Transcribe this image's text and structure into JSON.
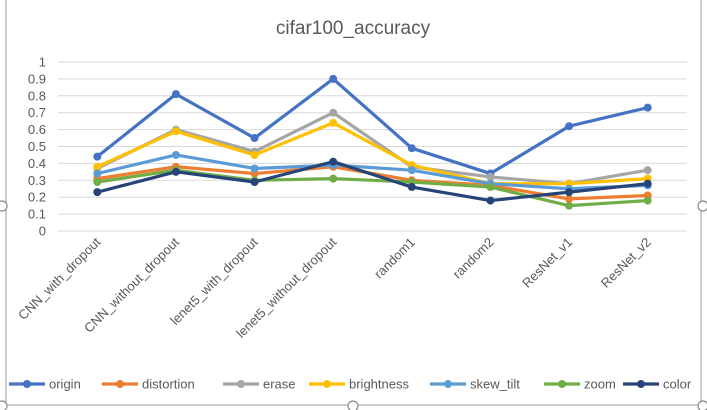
{
  "chart_data": {
    "type": "line",
    "title": "cifar100_accuracy",
    "categories": [
      "CNN_with_dropout",
      "CNN_without_dropout",
      "lenet5_with_dropout",
      "lenet5_without_dropout",
      "random1",
      "random2",
      "ResNet_v1",
      "ResNet_v2"
    ],
    "y_ticks": [
      "0",
      "0.1",
      "0.2",
      "0.3",
      "0.4",
      "0.5",
      "0.6",
      "0.7",
      "0.8",
      "0.9",
      "1"
    ],
    "ylim": [
      0,
      1
    ],
    "grid": true,
    "legend_position": "bottom",
    "series": [
      {
        "name": "origin",
        "color": "#4472C4",
        "values": [
          0.44,
          0.81,
          0.55,
          0.9,
          0.49,
          0.34,
          0.62,
          0.73
        ]
      },
      {
        "name": "distortion",
        "color": "#ED7D31",
        "values": [
          0.31,
          0.38,
          0.34,
          0.38,
          0.3,
          0.27,
          0.19,
          0.21
        ]
      },
      {
        "name": "erase",
        "color": "#A5A5A5",
        "values": [
          0.37,
          0.6,
          0.47,
          0.7,
          0.38,
          0.32,
          0.28,
          0.36
        ]
      },
      {
        "name": "brightness",
        "color": "#FFC000",
        "values": [
          0.38,
          0.59,
          0.45,
          0.64,
          0.39,
          0.28,
          0.28,
          0.31
        ]
      },
      {
        "name": "skew_tilt",
        "color": "#5B9BD5",
        "values": [
          0.34,
          0.45,
          0.37,
          0.39,
          0.36,
          0.28,
          0.25,
          0.27
        ]
      },
      {
        "name": "zoom",
        "color": "#70AD47",
        "values": [
          0.29,
          0.36,
          0.3,
          0.31,
          0.29,
          0.26,
          0.15,
          0.18
        ]
      },
      {
        "name": "color",
        "color": "#264478",
        "values": [
          0.23,
          0.35,
          0.29,
          0.41,
          0.26,
          0.18,
          0.23,
          0.28
        ]
      }
    ]
  }
}
